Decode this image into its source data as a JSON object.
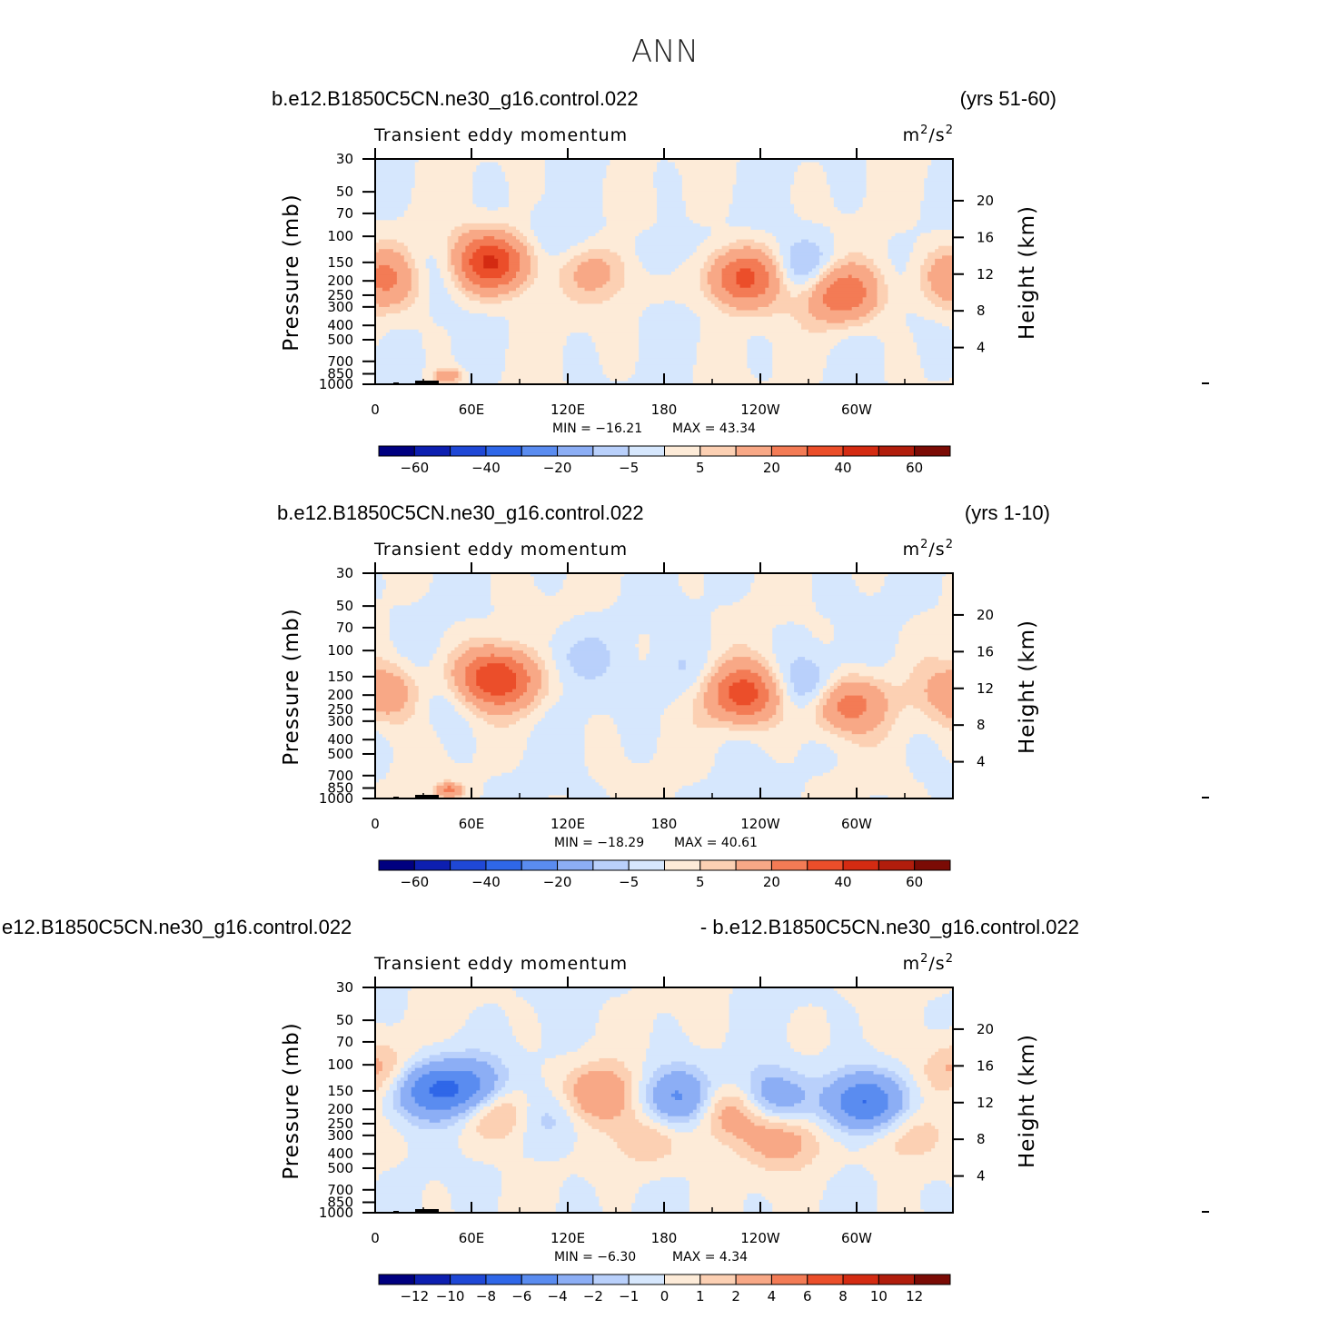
{
  "title": "ANN",
  "colors": {
    "fill_levels": [
      "#000080",
      "#0d1fb0",
      "#1f48d6",
      "#2f67e8",
      "#5a8cf0",
      "#8caef5",
      "#b9d0fb",
      "#d6e7fd",
      "#fdebd8",
      "#fcd0b3",
      "#f8a886",
      "#f37b55",
      "#eb4e2a",
      "#d42b12",
      "#b11d0c",
      "#7b0b05"
    ],
    "topography": "#000000"
  },
  "chart_data": [
    {
      "type": "contour",
      "case_left": "b.e12.B1850C5CN.ne30_g16.control.022",
      "case_right": "(yrs 51-60)",
      "subtitle_left": "Transient  eddy  momentum",
      "units_base": "m",
      "units_sup1": "2",
      "units_mid": "/s",
      "units_sup2": "2",
      "ylabel": "Pressure  (mb)",
      "ylabel_right": "Height  (km)",
      "xticks": [
        "0",
        "60E",
        "120E",
        "180",
        "120W",
        "60W"
      ],
      "yticks": [
        "30",
        "50",
        "70",
        "100",
        "150",
        "200",
        "250",
        "300",
        "400",
        "500",
        "700",
        "850",
        "1000"
      ],
      "ylevels": [
        30,
        50,
        70,
        100,
        150,
        200,
        250,
        300,
        400,
        500,
        700,
        850,
        1000
      ],
      "yticks_right": [
        "20",
        "16",
        "12",
        "8",
        "4"
      ],
      "yvals_right": [
        20,
        16,
        12,
        8,
        4
      ],
      "min_label": "MIN  =   −16.21",
      "max_label": "MAX  =    43.34",
      "min": -16.21,
      "max": 43.34,
      "contour_levels": [
        -70,
        -60,
        -50,
        -40,
        -30,
        -20,
        -10,
        -5,
        0,
        5,
        10,
        20,
        30,
        40,
        50,
        60,
        70
      ],
      "colorbar_labels": [
        "−60",
        "−40",
        "−20",
        "−5",
        "5",
        "20",
        "40",
        "60"
      ],
      "colorbar_label_levels": [
        -60,
        -40,
        -20,
        -5,
        5,
        20,
        40,
        60
      ],
      "features": [
        {
          "lon": 6,
          "p": 190,
          "amp": 22
        },
        {
          "lon": 72,
          "p": 150,
          "amp": 42
        },
        {
          "lon": 140,
          "p": 170,
          "amp": 13
        },
        {
          "lon": 230,
          "p": 190,
          "amp": 34
        },
        {
          "lon": 290,
          "p": 240,
          "amp": 30
        },
        {
          "lon": 268,
          "p": 170,
          "amp": -16
        },
        {
          "lon": 33,
          "p": 170,
          "amp": -8
        },
        {
          "lon": 120,
          "p": 110,
          "amp": -6
        },
        {
          "lon": 175,
          "p": 140,
          "amp": -5
        },
        {
          "lon": 45,
          "p": 880,
          "amp": 20
        }
      ]
    },
    {
      "type": "contour",
      "case_left": "b.e12.B1850C5CN.ne30_g16.control.022",
      "case_right": "(yrs 1-10)",
      "subtitle_left": "Transient  eddy  momentum",
      "units_base": "m",
      "units_sup1": "2",
      "units_mid": "/s",
      "units_sup2": "2",
      "ylabel": "Pressure  (mb)",
      "ylabel_right": "Height  (km)",
      "xticks": [
        "0",
        "60E",
        "120E",
        "180",
        "120W",
        "60W"
      ],
      "yticks": [
        "30",
        "50",
        "70",
        "100",
        "150",
        "200",
        "250",
        "300",
        "400",
        "500",
        "700",
        "850",
        "1000"
      ],
      "ylevels": [
        30,
        50,
        70,
        100,
        150,
        200,
        250,
        300,
        400,
        500,
        700,
        850,
        1000
      ],
      "yticks_right": [
        "20",
        "16",
        "12",
        "8",
        "4"
      ],
      "yvals_right": [
        20,
        16,
        12,
        8,
        4
      ],
      "min_label": "MIN  =   −18.29",
      "max_label": "MAX  =    40.61",
      "min": -18.29,
      "max": 40.61,
      "contour_levels": [
        -70,
        -60,
        -50,
        -40,
        -30,
        -20,
        -10,
        -5,
        0,
        5,
        10,
        20,
        30,
        40,
        50,
        60,
        70
      ],
      "colorbar_labels": [
        "−60",
        "−40",
        "−20",
        "−5",
        "5",
        "20",
        "40",
        "60"
      ],
      "colorbar_label_levels": [
        -60,
        -40,
        -20,
        -5,
        5,
        20,
        40,
        60
      ],
      "features": [
        {
          "lon": 6,
          "p": 195,
          "amp": 20
        },
        {
          "lon": 76,
          "p": 155,
          "amp": 40
        },
        {
          "lon": 230,
          "p": 195,
          "amp": 36
        },
        {
          "lon": 292,
          "p": 225,
          "amp": 30
        },
        {
          "lon": 272,
          "p": 180,
          "amp": -18
        },
        {
          "lon": 120,
          "p": 110,
          "amp": -7
        },
        {
          "lon": 198,
          "p": 150,
          "amp": -6
        },
        {
          "lon": 40,
          "p": 220,
          "amp": -6
        },
        {
          "lon": 46,
          "p": 880,
          "amp": 22
        }
      ]
    },
    {
      "type": "contour",
      "case_left": "e12.B1850C5CN.ne30_g16.control.022",
      "case_right": "- b.e12.B1850C5CN.ne30_g16.control.022",
      "subtitle_left": "Transient  eddy  momentum",
      "units_base": "m",
      "units_sup1": "2",
      "units_mid": "/s",
      "units_sup2": "2",
      "ylabel": "Pressure  (mb)",
      "ylabel_right": "Height  (km)",
      "xticks": [
        "0",
        "60E",
        "120E",
        "180",
        "120W",
        "60W"
      ],
      "yticks": [
        "30",
        "50",
        "70",
        "100",
        "150",
        "200",
        "250",
        "300",
        "400",
        "500",
        "700",
        "850",
        "1000"
      ],
      "ylevels": [
        30,
        50,
        70,
        100,
        150,
        200,
        250,
        300,
        400,
        500,
        700,
        850,
        1000
      ],
      "yticks_right": [
        "20",
        "16",
        "12",
        "8",
        "4"
      ],
      "yvals_right": [
        20,
        16,
        12,
        8,
        4
      ],
      "min_label": "MIN  =    −6.30",
      "max_label": "MAX  =     4.34",
      "min": -6.3,
      "max": 4.34,
      "contour_levels": [
        -14,
        -12,
        -10,
        -8,
        -6,
        -4,
        -2,
        -1,
        0,
        1,
        2,
        4,
        6,
        8,
        10,
        12,
        14
      ],
      "colorbar_labels": [
        "−12",
        "−10",
        "−8",
        "−6",
        "−4",
        "−2",
        "−1",
        "0",
        "1",
        "2",
        "4",
        "6",
        "8",
        "10",
        "12"
      ],
      "colorbar_label_levels": [
        -12,
        -10,
        -8,
        -6,
        -4,
        -2,
        -1,
        0,
        1,
        2,
        4,
        6,
        8,
        10,
        12
      ],
      "features": [
        {
          "lon": 4,
          "p": 110,
          "amp": 3
        },
        {
          "lon": 30,
          "p": 145,
          "amp": -5
        },
        {
          "lon": 60,
          "p": 150,
          "amp": -5.5
        },
        {
          "lon": 75,
          "p": 200,
          "amp": 4
        },
        {
          "lon": 140,
          "p": 160,
          "amp": 4
        },
        {
          "lon": 190,
          "p": 170,
          "amp": -5
        },
        {
          "lon": 220,
          "p": 200,
          "amp": 4.3
        },
        {
          "lon": 246,
          "p": 170,
          "amp": -4
        },
        {
          "lon": 254,
          "p": 320,
          "amp": 3
        },
        {
          "lon": 305,
          "p": 180,
          "amp": -6.3
        },
        {
          "lon": 330,
          "p": 300,
          "amp": 2
        },
        {
          "lon": 110,
          "p": 220,
          "amp": -2
        },
        {
          "lon": 170,
          "p": 320,
          "amp": 2
        }
      ]
    }
  ]
}
